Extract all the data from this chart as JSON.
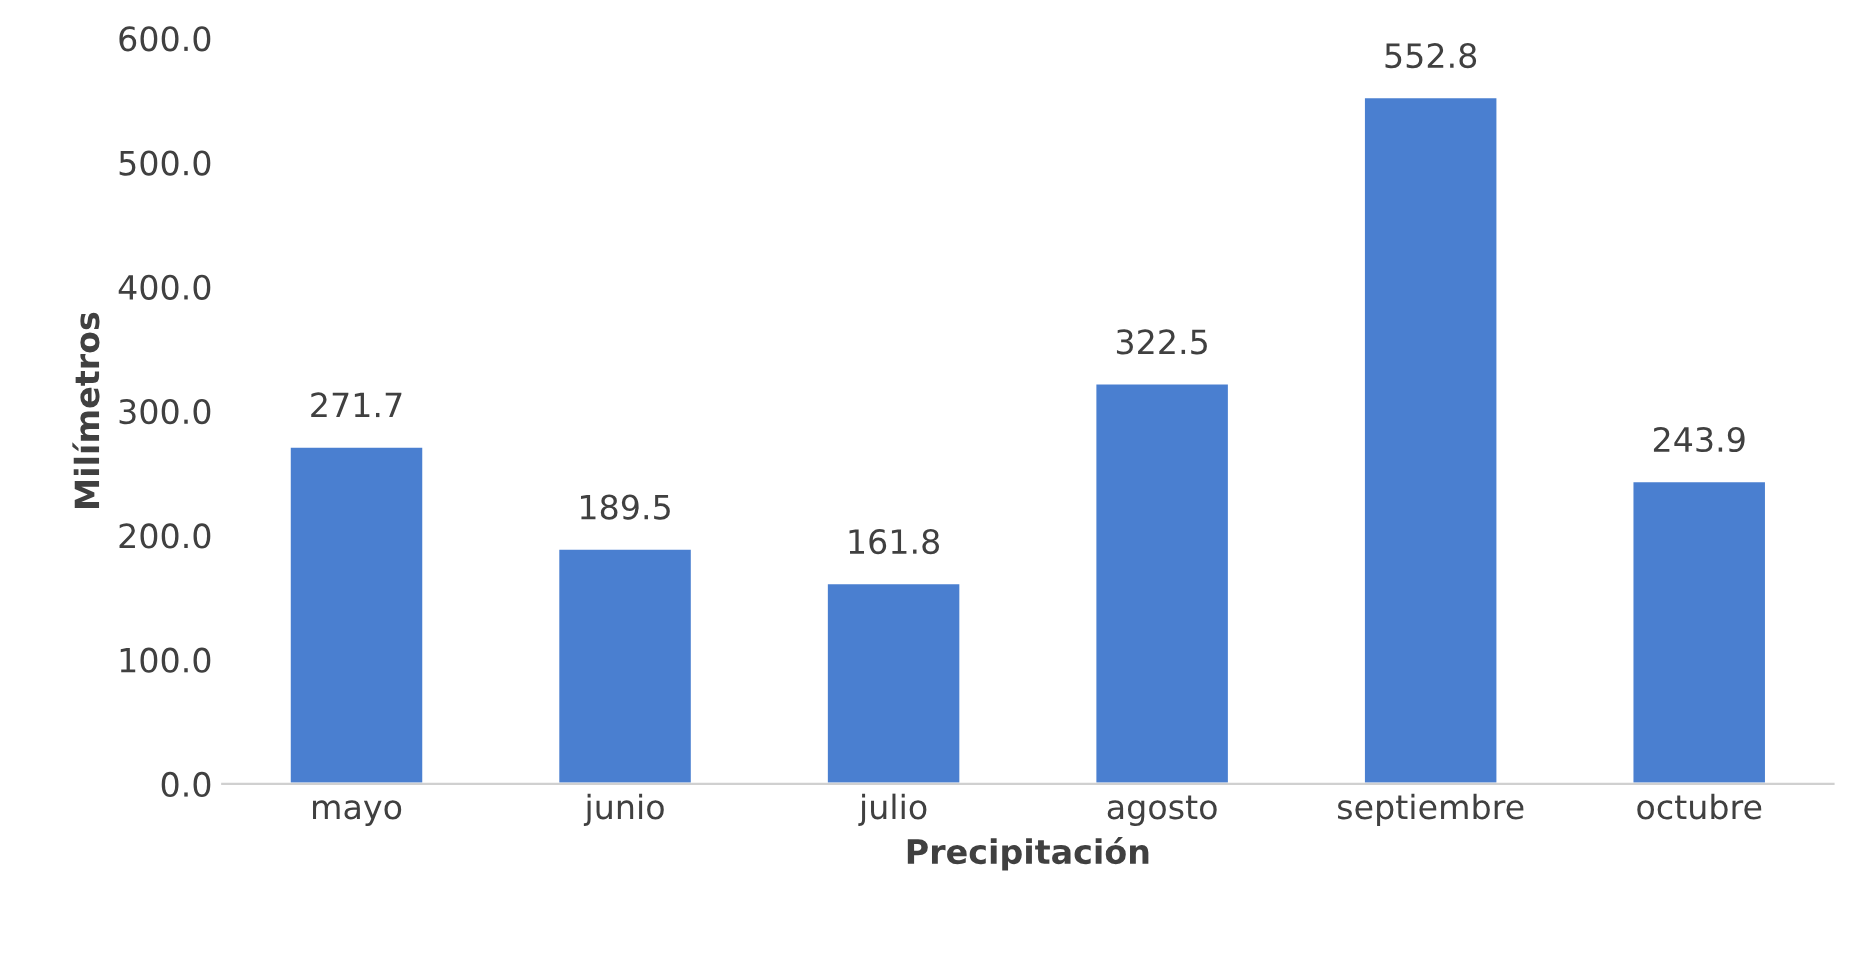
{
  "chart_data": {
    "type": "bar",
    "xlabel": "Precipitación",
    "ylabel": "Milímetros",
    "categories": [
      "mayo",
      "junio",
      "julio",
      "agosto",
      "septiembre",
      "octubre"
    ],
    "values": [
      271.7,
      189.5,
      161.8,
      322.5,
      552.8,
      243.9
    ],
    "color": "#4a7fd0",
    "ylim": [
      0,
      600
    ],
    "yticks": [
      {
        "value": 0,
        "label": "0.0"
      },
      {
        "value": 100,
        "label": "100.0"
      },
      {
        "value": 200,
        "label": "200.0"
      },
      {
        "value": 300,
        "label": "300.0"
      },
      {
        "value": 400,
        "label": "400.0"
      },
      {
        "value": 500,
        "label": "500.0"
      },
      {
        "value": 600,
        "label": "600.0"
      }
    ],
    "data_labels": true,
    "grid": false,
    "legend": false
  }
}
